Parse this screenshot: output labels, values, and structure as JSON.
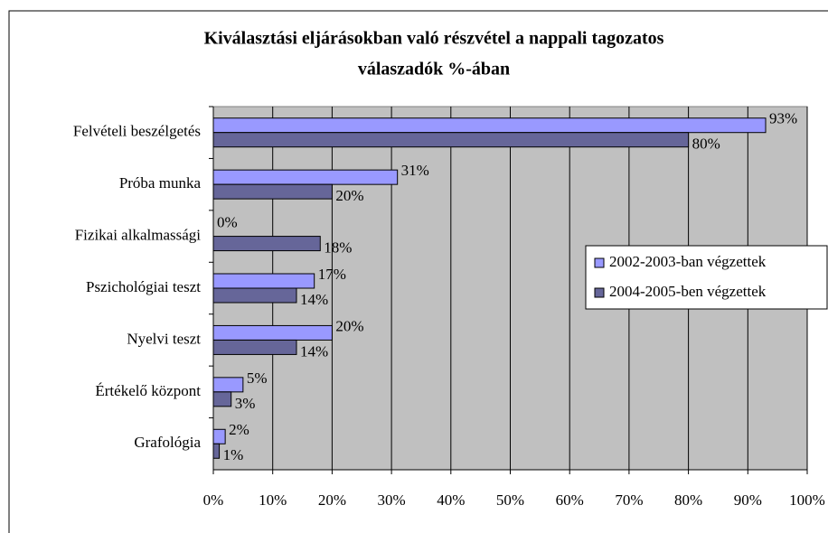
{
  "chart_data": {
    "type": "hbar",
    "title": [
      "Kiválasztási eljárásokban való részvétel a nappali tagozatos",
      "válaszadók %-ában"
    ],
    "categories": [
      "Felvételi beszélgetés",
      "Próba munka",
      "Fizikai alkalmassági",
      "Pszichológiai teszt",
      "Nyelvi teszt",
      "Értékelő központ",
      "Grafológia"
    ],
    "series": [
      {
        "name": "2002-2003-ban végzettek",
        "color": "#9999ff",
        "values": [
          93,
          31,
          0,
          17,
          20,
          5,
          2
        ],
        "value_labels": [
          "93%",
          "31%",
          "0%",
          "17%",
          "20%",
          "5%",
          "2%"
        ]
      },
      {
        "name": "2004-2005-ben végzettek",
        "color": "#666699",
        "values": [
          80,
          20,
          18,
          14,
          14,
          3,
          1
        ],
        "value_labels": [
          "80%",
          "20%",
          "18%",
          "14%",
          "14%",
          "3%",
          "1%"
        ]
      }
    ],
    "xlim": [
      0,
      100
    ],
    "xticks": [
      {
        "value": 0,
        "label": "0%"
      },
      {
        "value": 10,
        "label": "10%"
      },
      {
        "value": 20,
        "label": "20%"
      },
      {
        "value": 30,
        "label": "30%"
      },
      {
        "value": 40,
        "label": "40%"
      },
      {
        "value": 50,
        "label": "50%"
      },
      {
        "value": 60,
        "label": "60%"
      },
      {
        "value": 70,
        "label": "70%"
      },
      {
        "value": 80,
        "label": "80%"
      },
      {
        "value": 90,
        "label": "90%"
      },
      {
        "value": 100,
        "label": "100%"
      }
    ],
    "grid": true,
    "legend": "right"
  }
}
